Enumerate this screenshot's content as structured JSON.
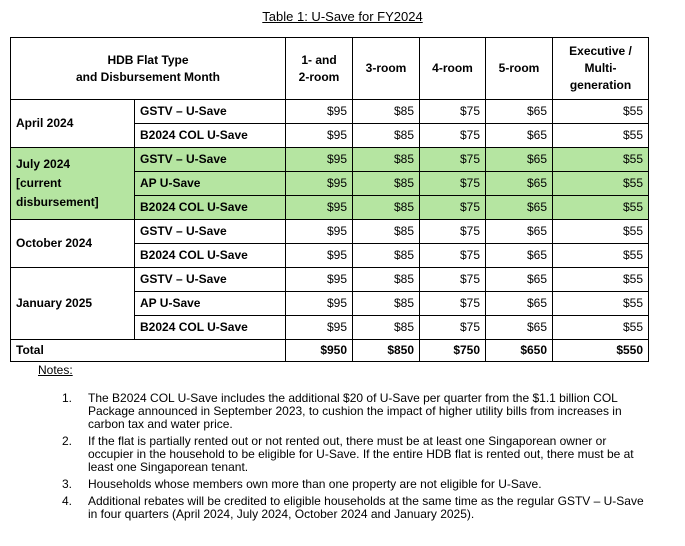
{
  "title": "Table 1: U-Save for FY2024",
  "table": {
    "header": [
      [
        "HDB Flat Type",
        "and Disbursement Month"
      ],
      [
        "1- and",
        "2-room"
      ],
      [
        "3-room"
      ],
      [
        "4-room"
      ],
      [
        "5-room"
      ],
      [
        "Executive /",
        "Multi-",
        "generation"
      ]
    ],
    "groups": [
      {
        "month": [
          "April 2024"
        ],
        "highlight": false,
        "rows": [
          {
            "rebate": "GSTV – U-Save",
            "amounts": [
              "$95",
              "$85",
              "$75",
              "$65",
              "$55"
            ]
          },
          {
            "rebate": "B2024 COL U-Save",
            "amounts": [
              "$95",
              "$85",
              "$75",
              "$65",
              "$55"
            ]
          }
        ]
      },
      {
        "month": [
          "July 2024",
          "[current",
          "disbursement]"
        ],
        "highlight": true,
        "rows": [
          {
            "rebate": "GSTV – U-Save",
            "amounts": [
              "$95",
              "$85",
              "$75",
              "$65",
              "$55"
            ]
          },
          {
            "rebate": "AP U-Save",
            "amounts": [
              "$95",
              "$85",
              "$75",
              "$65",
              "$55"
            ]
          },
          {
            "rebate": "B2024 COL U-Save",
            "amounts": [
              "$95",
              "$85",
              "$75",
              "$65",
              "$55"
            ]
          }
        ]
      },
      {
        "month": [
          "October 2024"
        ],
        "highlight": false,
        "rows": [
          {
            "rebate": "GSTV – U-Save",
            "amounts": [
              "$95",
              "$85",
              "$75",
              "$65",
              "$55"
            ]
          },
          {
            "rebate": "B2024 COL U-Save",
            "amounts": [
              "$95",
              "$85",
              "$75",
              "$65",
              "$55"
            ]
          }
        ]
      },
      {
        "month": [
          "January 2025"
        ],
        "highlight": false,
        "rows": [
          {
            "rebate": "GSTV – U-Save",
            "amounts": [
              "$95",
              "$85",
              "$75",
              "$65",
              "$55"
            ]
          },
          {
            "rebate": "AP U-Save",
            "amounts": [
              "$95",
              "$85",
              "$75",
              "$65",
              "$55"
            ]
          },
          {
            "rebate": "B2024 COL U-Save",
            "amounts": [
              "$95",
              "$85",
              "$75",
              "$65",
              "$55"
            ]
          }
        ]
      }
    ],
    "total": {
      "label": "Total",
      "amounts": [
        "$950",
        "$850",
        "$750",
        "$650",
        "$550"
      ]
    },
    "highlight_color": "#b5e5a1"
  },
  "notes": {
    "label": "Notes:",
    "items": [
      {
        "num": "1.",
        "text": "The B2024 COL U-Save includes the additional $20 of U-Save per quarter from the $1.1 billion COL Package announced in September 2023, to cushion the impact of higher utility bills from increases in carbon tax and water price."
      },
      {
        "num": "2.",
        "text": "If the flat is partially rented out or not rented out, there must be at least one Singaporean owner or occupier in the household to be eligible for U-Save. If the entire HDB flat is rented out, there must be at least one Singaporean tenant."
      },
      {
        "num": "3.",
        "text": "Households whose members own more than one property are not eligible for U-Save."
      },
      {
        "num": "4.",
        "text": "Additional rebates will be credited to eligible households at the same time as the regular GSTV – U-Save in four quarters (April 2024, July 2024, October 2024 and January 2025)."
      }
    ]
  }
}
